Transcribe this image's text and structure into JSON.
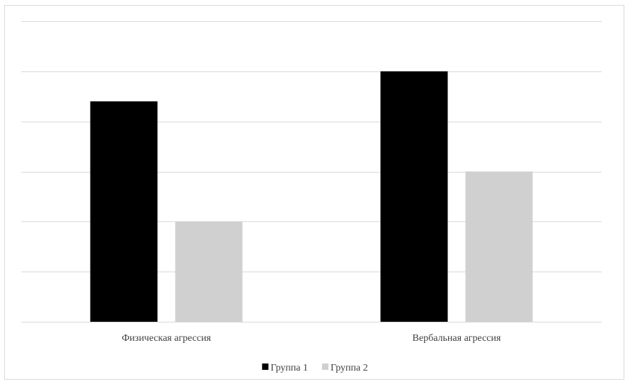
{
  "chart_data": {
    "type": "bar",
    "title": "",
    "xlabel": "",
    "ylabel": "",
    "categories": [
      "Физическая агрессия",
      "Вербальная агрессия"
    ],
    "series": [
      {
        "name": "Группа 1",
        "values": [
          4.4,
          5.0
        ],
        "color": "#000000"
      },
      {
        "name": "Группа 2",
        "values": [
          2.0,
          3.0
        ],
        "color": "#d0d0d0"
      }
    ],
    "ylim": [
      0,
      6
    ],
    "y_step": 1,
    "y_tick_labels_shown": false,
    "grid": true,
    "legend_position": "bottom"
  }
}
